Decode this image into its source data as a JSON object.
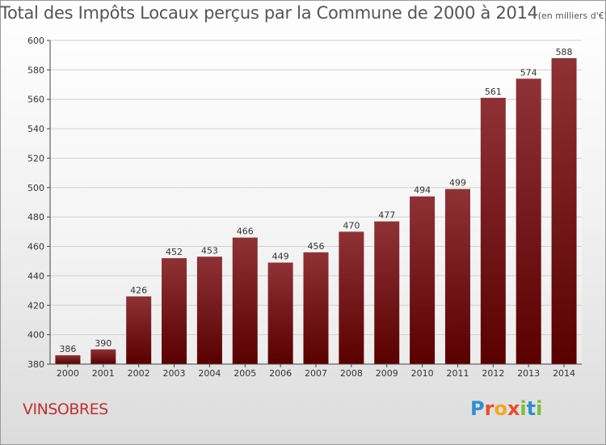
{
  "title": "Total des Impôts Locaux perçus par la Commune de 2000 à 2014",
  "unit_note": "(en milliers d'€)",
  "commune": "VINSOBRES",
  "logo": {
    "letters": [
      "P",
      "r",
      "o",
      "x",
      "i",
      "t",
      "i"
    ],
    "colors": [
      "#2f8fd1",
      "#e84e2a",
      "#f2a81d",
      "#e84e2a",
      "#7cbf3a",
      "#2f8fd1",
      "#7cbf3a"
    ]
  },
  "colors": {
    "bar_top": "#8e3236",
    "bar_bottom": "#5a0000",
    "axis": "#444444",
    "grid": "#d0d0d0",
    "label": "#333333"
  },
  "chart_data": {
    "type": "bar",
    "title": "Total des Impôts Locaux perçus par la Commune de 2000 à 2014",
    "categories": [
      "2000",
      "2001",
      "2002",
      "2003",
      "2004",
      "2005",
      "2006",
      "2007",
      "2008",
      "2009",
      "2010",
      "2011",
      "2012",
      "2013",
      "2014"
    ],
    "values": [
      386,
      390,
      426,
      452,
      453,
      466,
      449,
      456,
      470,
      477,
      494,
      499,
      561,
      574,
      588
    ],
    "ylim": [
      380,
      600
    ],
    "yticks": [
      380,
      400,
      420,
      440,
      460,
      480,
      500,
      520,
      540,
      560,
      580,
      600
    ],
    "grid": true,
    "xlabel": "",
    "ylabel": ""
  }
}
